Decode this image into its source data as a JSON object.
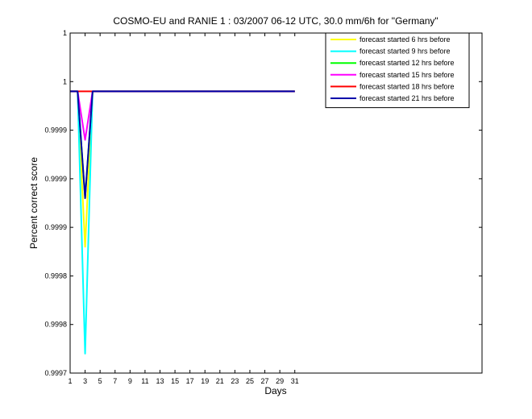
{
  "chart_data": {
    "type": "line",
    "title": "COSMO-EU and RANIE 1 : 03/2007 06-12 UTC, 30.0 mm/6h for \"Germany\"",
    "xlabel": "Days",
    "ylabel": "Percent correct score",
    "xlim": [
      1,
      56
    ],
    "ylim": [
      0.99971,
      1.00006
    ],
    "x_ticks": [
      1,
      3,
      5,
      7,
      9,
      11,
      13,
      15,
      17,
      19,
      21,
      23,
      25,
      27,
      29,
      31
    ],
    "x_tick_labels": [
      "1",
      "3",
      "5",
      "7",
      "9",
      "11",
      "13",
      "15",
      "17",
      "19",
      "21",
      "23",
      "25",
      "27",
      "29",
      "31"
    ],
    "y_ticks": [
      0.99971,
      0.99976,
      0.99981,
      0.99986,
      0.99991,
      0.99996,
      1.00001,
      1.00006
    ],
    "y_tick_labels": [
      "0.9997",
      "0.9998",
      "0.9998",
      "0.9999",
      "0.9999",
      "0.9999",
      "1",
      "1"
    ],
    "grid": false,
    "legend_position": "top-right",
    "x": [
      1,
      2,
      3,
      4,
      5,
      6,
      7,
      8,
      9,
      10,
      11,
      12,
      13,
      14,
      15,
      16,
      17,
      18,
      19,
      20,
      21,
      22,
      23,
      24,
      25,
      26,
      27,
      28,
      29,
      30,
      31
    ],
    "series": [
      {
        "name": "forecast started  6 hrs before",
        "color": "#ffff00",
        "values": [
          1,
          1,
          0.99984,
          1,
          1,
          1,
          1,
          1,
          1,
          1,
          1,
          1,
          1,
          1,
          1,
          1,
          1,
          1,
          1,
          1,
          1,
          1,
          1,
          1,
          1,
          1,
          1,
          1,
          1,
          1,
          1
        ]
      },
      {
        "name": "forecast started  9 hrs before",
        "color": "#00ffff",
        "values": [
          1,
          1,
          0.99973,
          1,
          1,
          1,
          1,
          1,
          1,
          1,
          1,
          1,
          1,
          1,
          1,
          1,
          1,
          1,
          1,
          1,
          1,
          1,
          1,
          1,
          1,
          1,
          1,
          1,
          1,
          1,
          1
        ]
      },
      {
        "name": "forecast started  12 hrs before",
        "color": "#00ff00",
        "values": [
          1,
          1,
          0.99989,
          1,
          1,
          1,
          1,
          1,
          1,
          1,
          1,
          1,
          1,
          1,
          1,
          1,
          1,
          1,
          1,
          1,
          1,
          1,
          1,
          1,
          1,
          1,
          1,
          1,
          1,
          1,
          1
        ]
      },
      {
        "name": "forecast started  15 hrs before",
        "color": "#ff00ff",
        "values": [
          1,
          1,
          0.99995,
          1,
          1,
          1,
          1,
          1,
          1,
          1,
          1,
          1,
          1,
          1,
          1,
          1,
          1,
          1,
          1,
          1,
          1,
          1,
          1,
          1,
          1,
          1,
          1,
          1,
          1,
          1,
          1
        ]
      },
      {
        "name": "forecast started  18 hrs before",
        "color": "#ff0000",
        "values": [
          1,
          1,
          1,
          1,
          1,
          1,
          1,
          1,
          1,
          1,
          1,
          1,
          1,
          1,
          1,
          1,
          1,
          1,
          1,
          1,
          1,
          1,
          1,
          1,
          1,
          1,
          1,
          1,
          1,
          1,
          1
        ]
      },
      {
        "name": "forecast started  21 hrs before",
        "color": "#0000aa",
        "values": [
          1,
          1,
          0.99989,
          1,
          1,
          1,
          1,
          1,
          1,
          1,
          1,
          1,
          1,
          1,
          1,
          1,
          1,
          1,
          1,
          1,
          1,
          1,
          1,
          1,
          1,
          1,
          1,
          1,
          1,
          1,
          1
        ]
      }
    ]
  }
}
